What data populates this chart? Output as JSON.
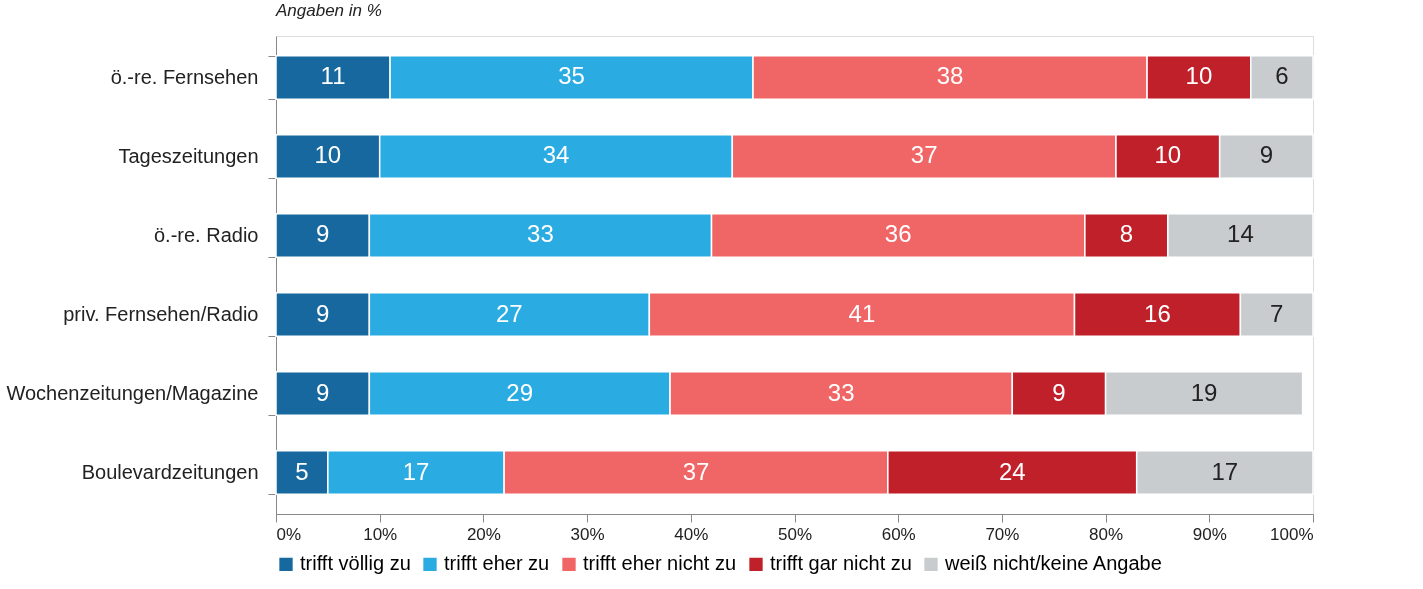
{
  "chart_data": {
    "type": "bar",
    "orientation": "horizontal",
    "stacked": true,
    "subtitle": "Angaben in %",
    "categories": [
      "ö.-re. Fernsehen",
      "Tageszeitungen",
      "ö.-re. Radio",
      "priv. Fernsehen/Radio",
      "Wochenzeitungen/Magazine",
      "Boulevardzeitungen"
    ],
    "series": [
      {
        "name": "trifft völlig zu",
        "color": "#17689e",
        "values": [
          11,
          10,
          9,
          9,
          9,
          5
        ]
      },
      {
        "name": "trifft eher zu",
        "color": "#2aace2",
        "values": [
          35,
          34,
          33,
          27,
          29,
          17
        ]
      },
      {
        "name": "trifft eher nicht zu",
        "color": "#f06667",
        "values": [
          38,
          37,
          36,
          41,
          33,
          37
        ]
      },
      {
        "name": "trifft gar nicht zu",
        "color": "#c0202a",
        "values": [
          10,
          10,
          8,
          16,
          9,
          24
        ]
      },
      {
        "name": "weiß nicht/keine Angabe",
        "color": "#c9cccf",
        "values": [
          6,
          9,
          14,
          7,
          19,
          17
        ]
      }
    ],
    "xlim": [
      0,
      100
    ],
    "xticks": [
      {
        "value": 0,
        "label": "0%"
      },
      {
        "value": 10,
        "label": "10%"
      },
      {
        "value": 20,
        "label": "20%"
      },
      {
        "value": 30,
        "label": "30%"
      },
      {
        "value": 40,
        "label": "40%"
      },
      {
        "value": 50,
        "label": "50%"
      },
      {
        "value": 60,
        "label": "60%"
      },
      {
        "value": 70,
        "label": "70%"
      },
      {
        "value": 80,
        "label": "80%"
      },
      {
        "value": 90,
        "label": "90%"
      },
      {
        "value": 100,
        "label": "100%"
      }
    ],
    "data_labels": true,
    "legend": "bottom",
    "grid": false
  }
}
